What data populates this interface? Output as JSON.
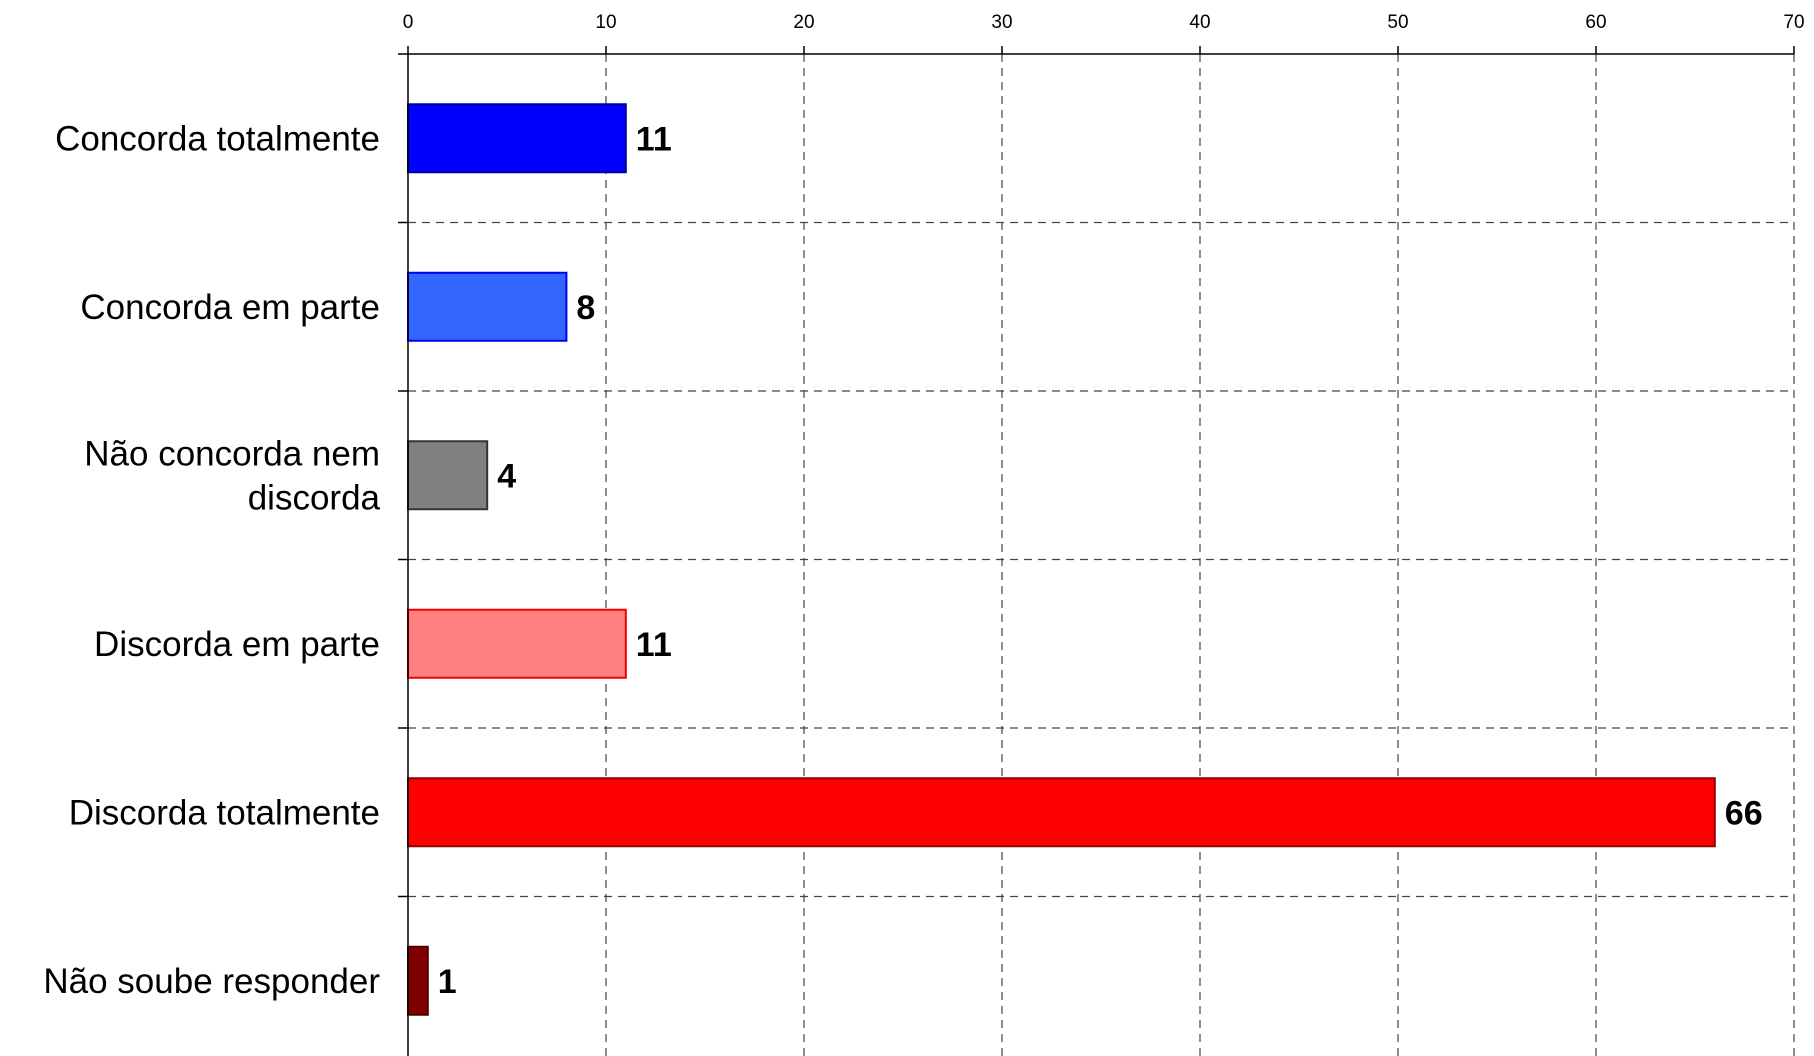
{
  "chart_data": {
    "type": "bar",
    "orientation": "horizontal",
    "categories": [
      [
        "Concorda totalmente"
      ],
      [
        "Concorda em parte"
      ],
      [
        "Não concorda nem",
        "discorda"
      ],
      [
        "Discorda em parte"
      ],
      [
        "Discorda totalmente"
      ],
      [
        "Não soube responder"
      ]
    ],
    "values": [
      11,
      8,
      4,
      11,
      66,
      1
    ],
    "data_labels": [
      "11",
      "8",
      "4",
      "11",
      "66",
      "1"
    ],
    "bar_colors": [
      "#0000ff",
      "#3366ff",
      "#808080",
      "#ff8080",
      "#ff0000",
      "#800000"
    ],
    "bar_edge_colors": [
      "#00009a",
      "#0000ee",
      "#333333",
      "#ee0000",
      "#900000",
      "#500000"
    ],
    "x_ticks": [
      0,
      10,
      20,
      30,
      40,
      50,
      60,
      70
    ],
    "xlim": [
      0,
      70
    ],
    "x_axis_position": "top",
    "grid": true,
    "grid_style": "dashed",
    "legend": "none",
    "title": "",
    "xlabel": "",
    "ylabel": ""
  }
}
